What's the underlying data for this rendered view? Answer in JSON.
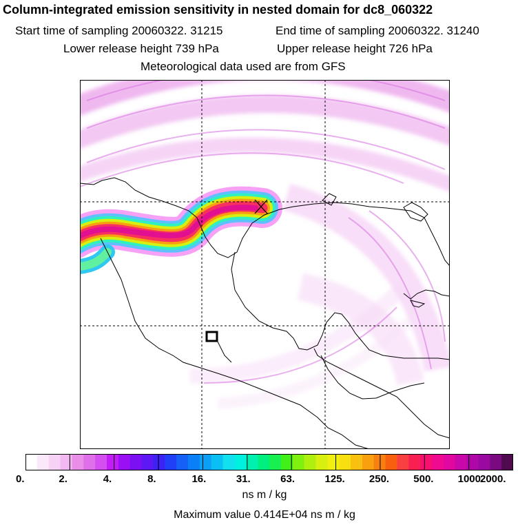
{
  "header": {
    "title": "Column-integrated emission sensitivity in nested domain for dc8_060322",
    "start_time": "Start time of sampling 20060322. 31215",
    "end_time": "End time of sampling 20060322. 31240",
    "lower_height": "Lower release height  739 hPa",
    "upper_height": "Upper release height  726 hPa",
    "met_data": "Meteorological data used are from GFS"
  },
  "colorbar": {
    "labels": [
      "0.",
      "2.",
      "4.",
      "8.",
      "16.",
      "31.",
      "63.",
      "125.",
      "250.",
      "500.",
      "1000.",
      "2000."
    ],
    "colors": [
      "#ffffff",
      "#fbe9fb",
      "#f7d2f7",
      "#f2b8f2",
      "#e98ee9",
      "#e070ea",
      "#d34ff0",
      "#c31cf6",
      "#9a10f4",
      "#7b10f2",
      "#5c18f5",
      "#3c22f5",
      "#2040f7",
      "#1560f7",
      "#0a80f7",
      "#0aa0f5",
      "#0ac0f2",
      "#12e0ef",
      "#00f0e0",
      "#00f0b0",
      "#00f080",
      "#18f050",
      "#40f018",
      "#80f010",
      "#b0f010",
      "#d8f010",
      "#f0f010",
      "#f8e010",
      "#f8c010",
      "#f8a010",
      "#f88010",
      "#f86010",
      "#f84040",
      "#f82050",
      "#f81070",
      "#f00a90",
      "#e008a0",
      "#c808a8",
      "#b008a8",
      "#9a0aa0",
      "#7a0a80",
      "#500a50"
    ],
    "units": "ns m / kg",
    "max_value": "Maximum value  0.414E+04 ns m / kg"
  },
  "map": {
    "release_marker": "X-cross",
    "box_marker": "square"
  }
}
